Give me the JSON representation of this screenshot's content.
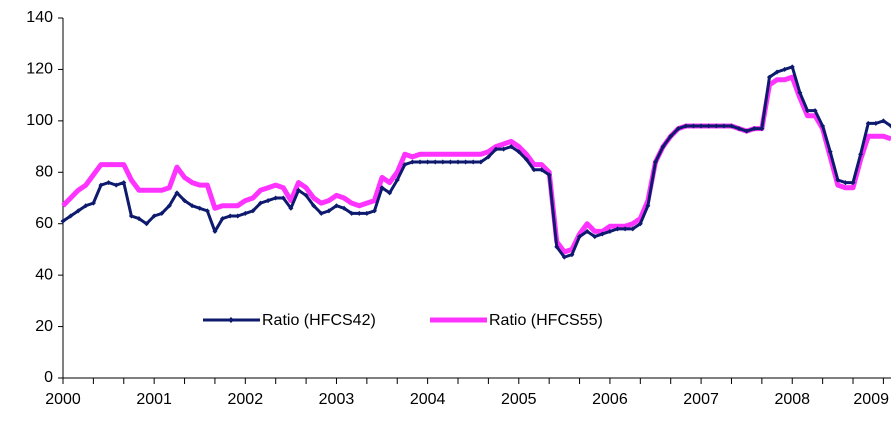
{
  "chart_data": {
    "type": "line",
    "categories": [
      "2000",
      null,
      null,
      null,
      null,
      null,
      null,
      null,
      null,
      null,
      null,
      null,
      "2001",
      null,
      null,
      null,
      null,
      null,
      null,
      null,
      null,
      null,
      null,
      null,
      "2002",
      null,
      null,
      null,
      null,
      null,
      null,
      null,
      null,
      null,
      null,
      null,
      "2003",
      null,
      null,
      null,
      null,
      null,
      null,
      null,
      null,
      null,
      null,
      null,
      "2004",
      null,
      null,
      null,
      null,
      null,
      null,
      null,
      null,
      null,
      null,
      null,
      "2005",
      null,
      null,
      null,
      null,
      null,
      null,
      null,
      null,
      null,
      null,
      null,
      "2006",
      null,
      null,
      null,
      null,
      null,
      null,
      null,
      null,
      null,
      null,
      null,
      "2007",
      null,
      null,
      null,
      null,
      null,
      null,
      null,
      null,
      null,
      null,
      null,
      "2008",
      null,
      null,
      null,
      null,
      null,
      null,
      null,
      null,
      null,
      null,
      null,
      "2009",
      null
    ],
    "series": [
      {
        "name": "Ratio (HFCS42)",
        "color": "#0d1a6e",
        "values": [
          61,
          63,
          65,
          67,
          68,
          75,
          76,
          75,
          76,
          63,
          62,
          60,
          63,
          64,
          67,
          72,
          69,
          67,
          66,
          65,
          57,
          62,
          63,
          63,
          64,
          65,
          68,
          69,
          70,
          70,
          66,
          73,
          71,
          67,
          64,
          65,
          67,
          66,
          64,
          64,
          64,
          65,
          74,
          72,
          77,
          83,
          84,
          84,
          84,
          84,
          84,
          84,
          84,
          84,
          84,
          84,
          86,
          89,
          89,
          90,
          88,
          85,
          81,
          81,
          79,
          51,
          47,
          48,
          55,
          57,
          55,
          56,
          57,
          58,
          58,
          58,
          60,
          67,
          84,
          90,
          94,
          97,
          98,
          98,
          98,
          98,
          98,
          98,
          98,
          97,
          96,
          97,
          97,
          117,
          119,
          120,
          121,
          111,
          104,
          104,
          98,
          88,
          77,
          76,
          76,
          87,
          99,
          99,
          100,
          98
        ]
      },
      {
        "name": "Ratio (HFCS55)",
        "color": "#ff33ff",
        "values": [
          67,
          70,
          73,
          75,
          79,
          83,
          83,
          83,
          83,
          77,
          73,
          73,
          73,
          73,
          74,
          82,
          78,
          76,
          75,
          75,
          66,
          67,
          67,
          67,
          69,
          70,
          73,
          74,
          75,
          74,
          69,
          76,
          74,
          70,
          68,
          69,
          71,
          70,
          68,
          67,
          68,
          69,
          78,
          76,
          80,
          87,
          86,
          87,
          87,
          87,
          87,
          87,
          87,
          87,
          87,
          87,
          88,
          90,
          91,
          92,
          90,
          87,
          83,
          83,
          80,
          53,
          49,
          50,
          56,
          60,
          57,
          57,
          59,
          59,
          59,
          60,
          62,
          69,
          84,
          90,
          94,
          97,
          98,
          98,
          98,
          98,
          98,
          98,
          98,
          97,
          96,
          97,
          97,
          114,
          116,
          116,
          117,
          109,
          102,
          102,
          97,
          86,
          75,
          74,
          74,
          85,
          94,
          94,
          94,
          93
        ]
      }
    ],
    "ylim": [
      0,
      140
    ],
    "yticks": [
      0,
      20,
      40,
      60,
      80,
      100,
      120,
      140
    ],
    "grid": false
  }
}
